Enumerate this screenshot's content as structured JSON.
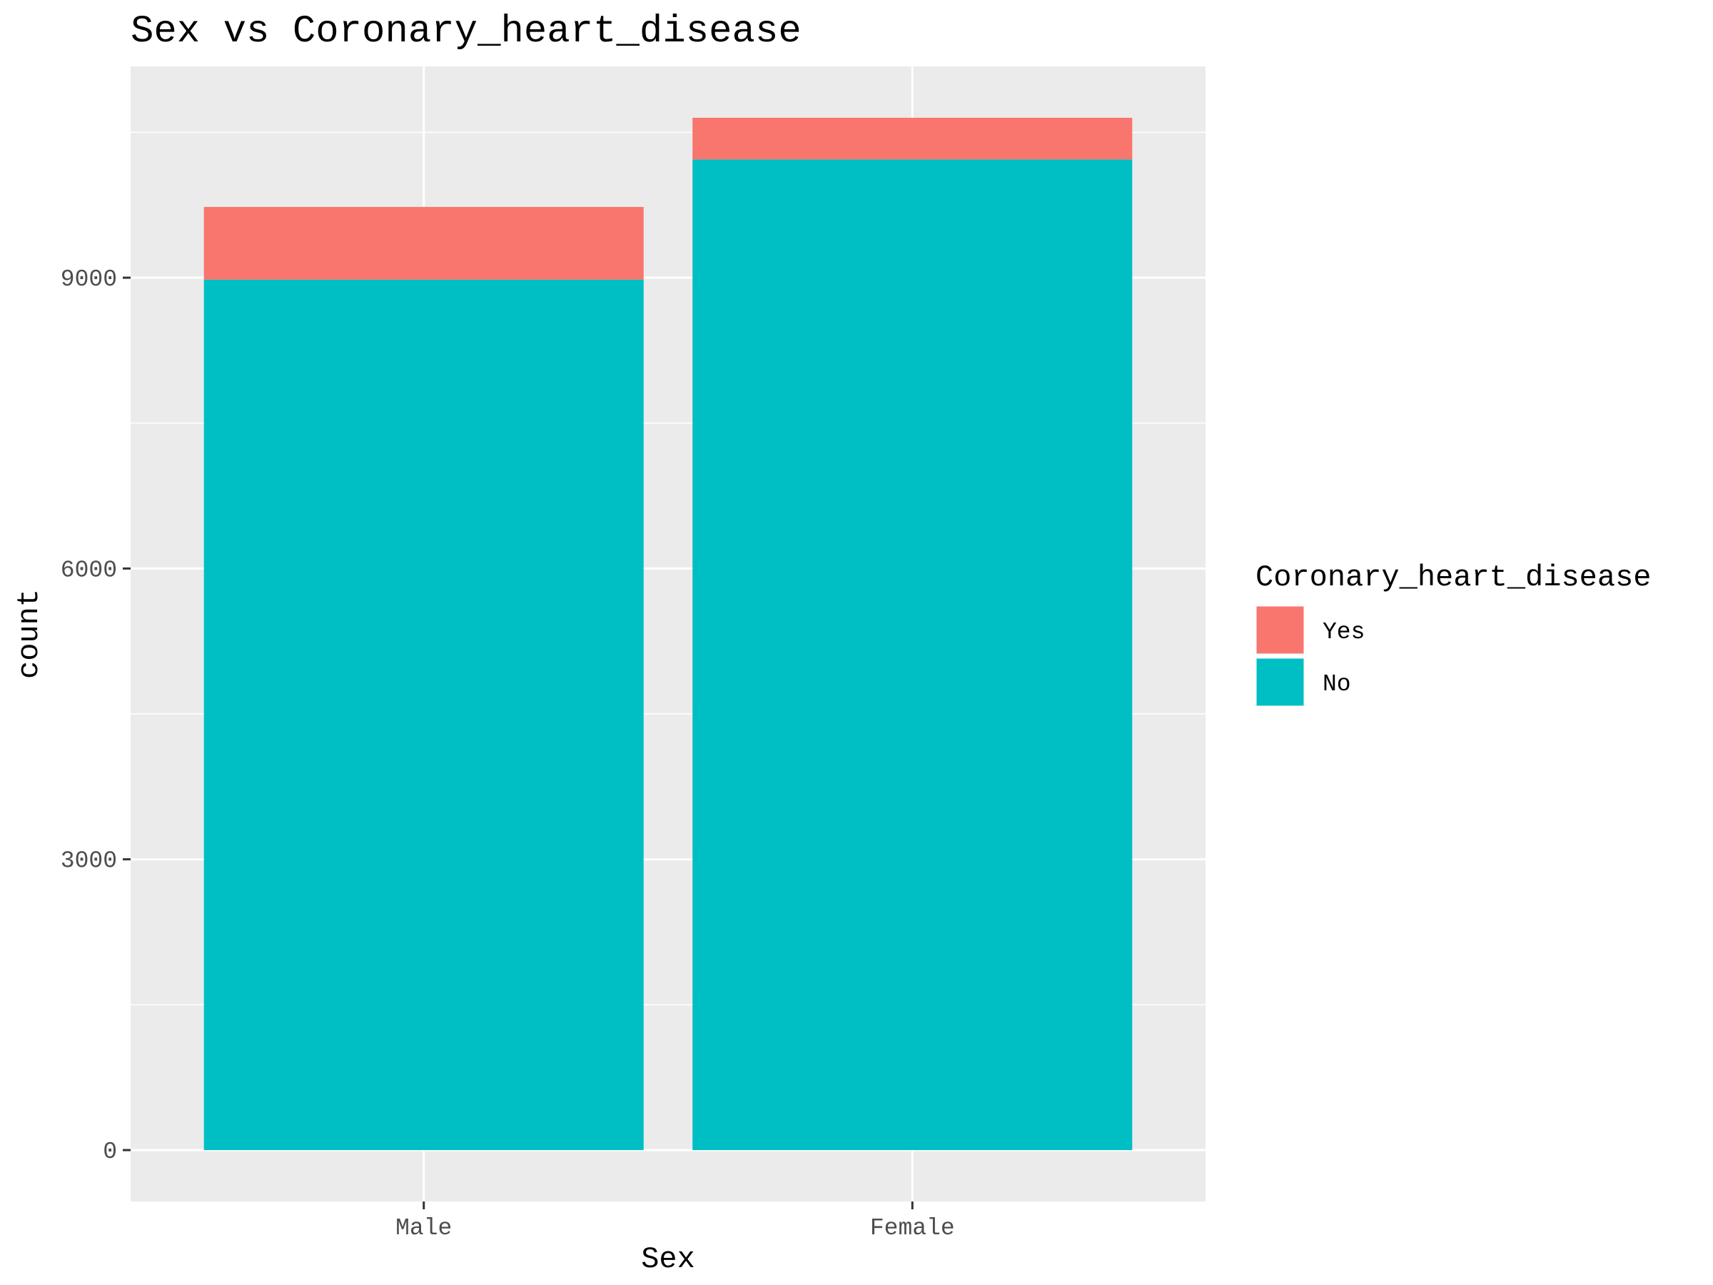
{
  "chart_data": {
    "type": "bar",
    "stacked": true,
    "title": "Sex vs Coronary_heart_disease",
    "xlabel": "Sex",
    "ylabel": "count",
    "categories": [
      "Male",
      "Female"
    ],
    "series": [
      {
        "name": "No",
        "values": [
          8980,
          10220
        ],
        "color": "#00BFC4"
      },
      {
        "name": "Yes",
        "values": [
          750,
          430
        ],
        "color": "#F8766D"
      }
    ],
    "yticks": [
      0,
      3000,
      6000,
      9000
    ],
    "ytick_labels": [
      "0",
      "3000",
      "6000",
      "9000"
    ],
    "ylim": [
      -530,
      11180
    ],
    "grid": true,
    "legend": {
      "title": "Coronary_heart_disease",
      "position": "right",
      "items": [
        {
          "label": "Yes",
          "color": "#F8766D"
        },
        {
          "label": "No",
          "color": "#00BFC4"
        }
      ]
    },
    "panel_background": "#EBEBEB",
    "gridline_color": "#FFFFFF"
  }
}
